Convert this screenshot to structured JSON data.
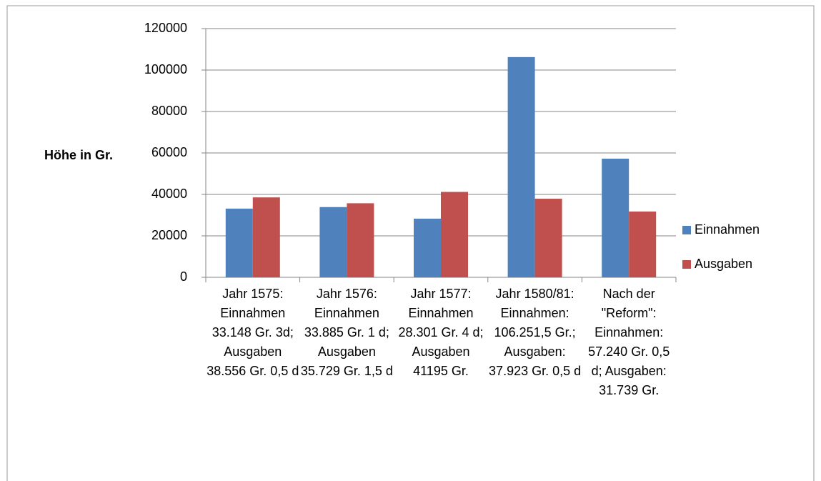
{
  "chart_data": {
    "type": "bar",
    "y_label": "Höhe in Gr.",
    "categories": [
      "Jahr 1575: Einnahmen 33.148 Gr. 3d; Ausgaben 38.556 Gr. 0,5 d",
      "Jahr 1576: Einnahmen 33.885 Gr. 1 d; Ausgaben 35.729 Gr. 1,5 d",
      "Jahr 1577: Einnahmen 28.301 Gr. 4 d; Ausgaben 41195 Gr.",
      "Jahr 1580/81: Einnahmen: 106.251,5 Gr.; Ausgaben: 37.923 Gr. 0,5 d",
      "Nach der \"Reform\": Einnahmen: 57.240 Gr. 0,5 d; Ausgaben: 31.739 Gr."
    ],
    "series": [
      {
        "name": "Einnahmen",
        "color": "#4f81bd",
        "values": [
          33148,
          33885,
          28301,
          106251.5,
          57240
        ]
      },
      {
        "name": "Ausgaben",
        "color": "#c0504d",
        "values": [
          38556,
          35729,
          41195,
          37923,
          31739
        ]
      }
    ],
    "ylim": [
      0,
      120000
    ],
    "yticks": [
      0,
      20000,
      40000,
      60000,
      80000,
      100000,
      120000
    ],
    "grid": true,
    "legend": "right"
  }
}
